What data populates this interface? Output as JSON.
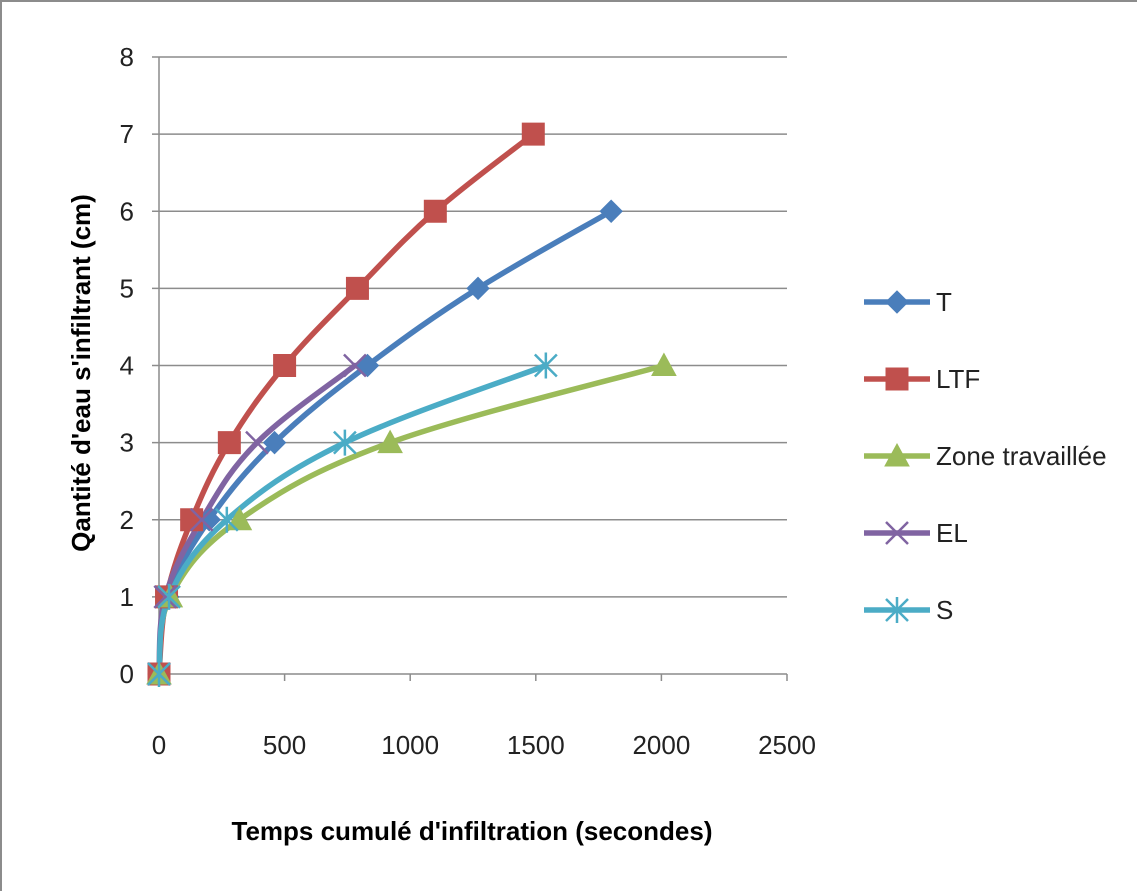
{
  "chart_data": {
    "type": "line",
    "title": "",
    "xlabel": "Temps cumulé d'infiltration (secondes)",
    "ylabel": "Qantité d'eau s'infiltrant (cm)",
    "xlim": [
      0,
      2500
    ],
    "ylim": [
      0,
      8
    ],
    "xticks": [
      0,
      500,
      1000,
      1500,
      2000,
      2500
    ],
    "yticks": [
      0,
      1,
      2,
      3,
      4,
      5,
      6,
      7,
      8
    ],
    "grid": "horizontal",
    "legend_position": "right",
    "series": [
      {
        "name": "T",
        "color": "#4a7ebb",
        "marker": "diamond",
        "x": [
          0,
          35,
          200,
          460,
          830,
          1270,
          1800
        ],
        "y": [
          0,
          1,
          2,
          3,
          4,
          5,
          6
        ]
      },
      {
        "name": "LTF",
        "color": "#c0504d",
        "marker": "square",
        "x": [
          0,
          30,
          130,
          280,
          500,
          790,
          1100,
          1490
        ],
        "y": [
          0,
          1,
          2,
          3,
          4,
          5,
          6,
          7
        ]
      },
      {
        "name": "Zone travaillée",
        "color": "#9bbb59",
        "marker": "triangle",
        "x": [
          0,
          45,
          320,
          920,
          2010
        ],
        "y": [
          0,
          1,
          2,
          3,
          4
        ]
      },
      {
        "name": "EL",
        "color": "#8064a2",
        "marker": "x",
        "x": [
          0,
          25,
          170,
          390,
          780
        ],
        "y": [
          0,
          1,
          2,
          3,
          4
        ]
      },
      {
        "name": "S",
        "color": "#4bacc6",
        "marker": "star",
        "x": [
          0,
          40,
          270,
          740,
          1540
        ],
        "y": [
          0,
          1,
          2,
          3,
          4
        ]
      }
    ]
  }
}
